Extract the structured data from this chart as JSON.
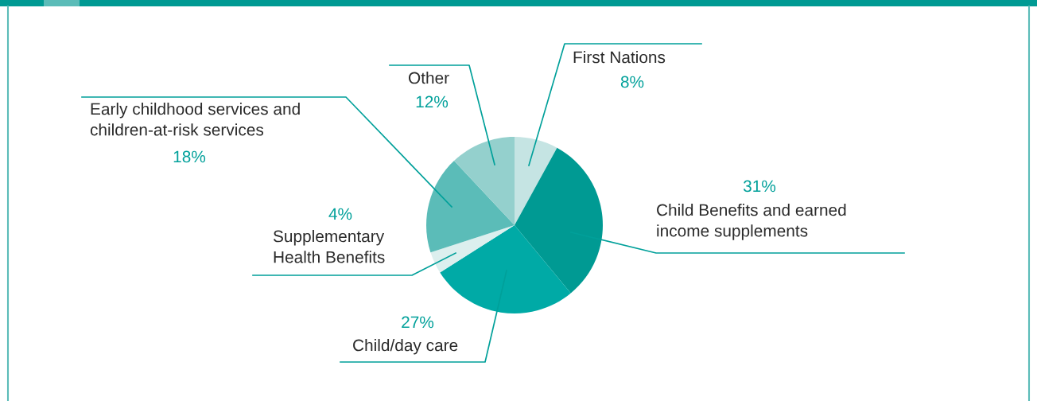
{
  "chart_data": {
    "type": "pie",
    "categories": [
      "First Nations",
      "Child Benefits and earned\nincome supplements",
      "Child/day care",
      "Supplementary\nHealth Benefits",
      "Early childhood services and\nchildren-at-risk services",
      "Other"
    ],
    "values": [
      8,
      31,
      27,
      4,
      18,
      12
    ],
    "value_labels": [
      "8%",
      "31%",
      "27%",
      "4%",
      "18%",
      "12%"
    ],
    "colors": [
      "#c5e4e3",
      "#009a93",
      "#00aaa6",
      "#dcefee",
      "#5bbcb8",
      "#94d0cd"
    ]
  }
}
